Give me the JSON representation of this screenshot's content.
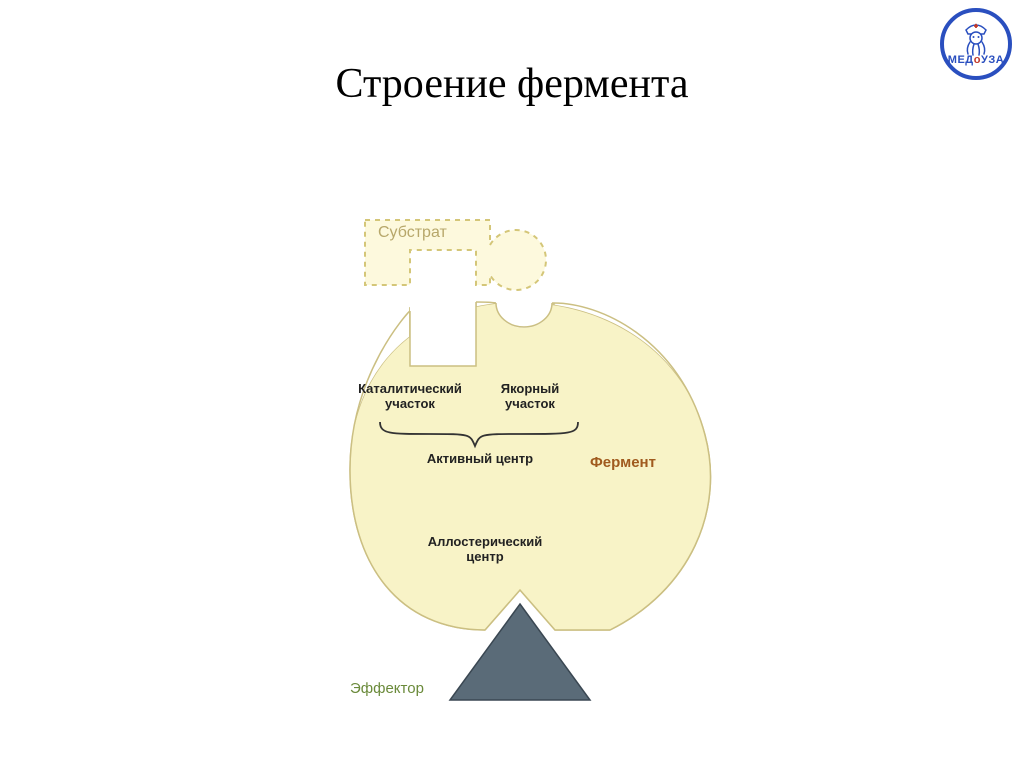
{
  "title": "Строение фермента",
  "logo": {
    "text_parts": [
      "МЕД",
      "о",
      "УЗА"
    ],
    "border_color": "#2a4fbf",
    "accent_color": "#c0392b"
  },
  "diagram": {
    "type": "infographic",
    "background_color": "#ffffff",
    "enzyme": {
      "fill": "#f8f3c7",
      "stroke": "#cbbf82",
      "stroke_width": 1.5,
      "label": "Фермент",
      "label_color": "#a05a1e",
      "label_fontsize": 15
    },
    "substrate": {
      "fill": "#fdf9dd",
      "stroke": "#d4c678",
      "stroke_dash": "4 4",
      "stroke_width": 2,
      "label": "Субстрат",
      "label_color": "#b7a76a",
      "label_fontsize": 16
    },
    "catalytic_site_label": "Каталитический\nучасток",
    "anchor_site_label": "Якорный\nучасток",
    "active_center_label": "Активный центр",
    "allosteric_center_label": "Аллостерический\nцентр",
    "section_label_fontsize": 13,
    "section_label_color": "#222222",
    "brace_color": "#333333",
    "effector": {
      "fill": "#5a6b78",
      "stroke": "#3a4752",
      "stroke_width": 1.5,
      "label": "Эффектор",
      "label_color": "#6a8a3a",
      "label_fontsize": 15
    }
  }
}
